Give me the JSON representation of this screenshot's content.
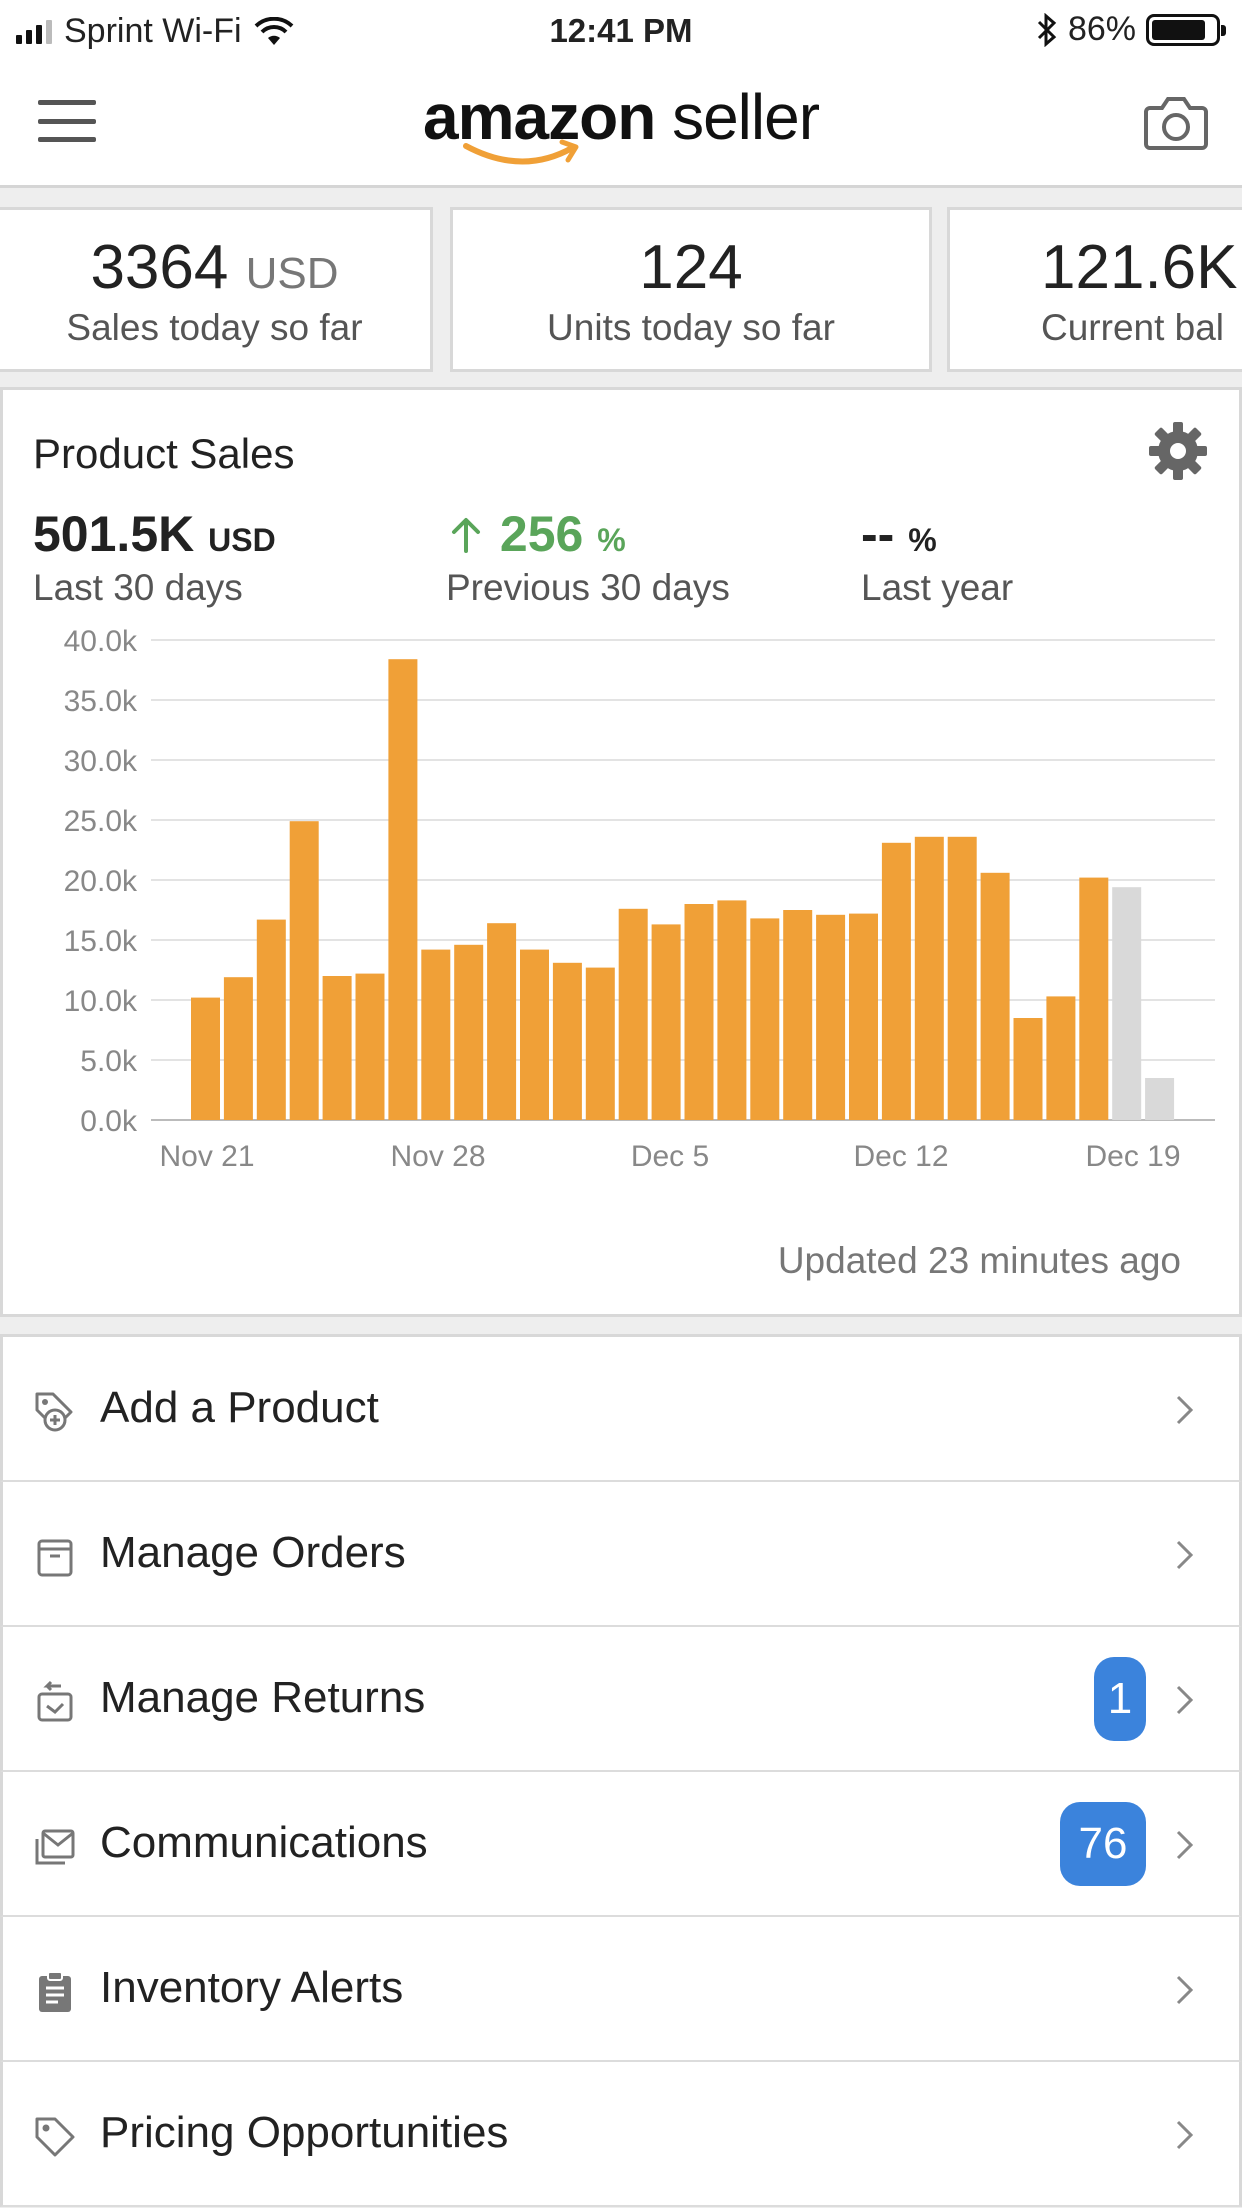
{
  "status_bar": {
    "carrier": "Sprint Wi-Fi",
    "time": "12:41 PM",
    "battery": "86%",
    "battery_level": 0.86
  },
  "header": {
    "logo_brand": "amazon",
    "logo_suffix": "seller",
    "menu_icon": "hamburger-icon",
    "camera_icon": "camera-icon"
  },
  "kpis": [
    {
      "value": "3364",
      "unit": "USD",
      "label": "Sales today so far"
    },
    {
      "value": "124",
      "unit": "",
      "label": "Units today so far"
    },
    {
      "value": "121.6K",
      "unit": "",
      "label": "Current bal"
    }
  ],
  "product_sales": {
    "title": "Product Sales",
    "metrics": [
      {
        "value": "501.5K",
        "unit": "USD",
        "label": "Last 30 days"
      },
      {
        "value": "256",
        "unit": "%",
        "label": "Previous 30 days",
        "trend": "up"
      },
      {
        "value": "--",
        "unit": "%",
        "label": "Last year"
      }
    ],
    "updated": "Updated 23 minutes ago"
  },
  "chart_data": {
    "type": "bar",
    "title": "",
    "xlabel": "",
    "ylabel": "",
    "ylim": [
      0,
      40000
    ],
    "yticks": [
      "0.0k",
      "5.0k",
      "10.0k",
      "15.0k",
      "20.0k",
      "25.0k",
      "30.0k",
      "35.0k",
      "40.0k"
    ],
    "xticks": [
      "Nov 21",
      "Nov 28",
      "Dec 5",
      "Dec 12",
      "Dec 19"
    ],
    "grid": true,
    "colors": {
      "actual": "#f0a037",
      "projected": "#d9d9d9"
    },
    "values": [
      10200,
      11900,
      16700,
      24900,
      12000,
      12200,
      38400,
      14200,
      14600,
      16400,
      14200,
      13100,
      12700,
      17600,
      16300,
      18000,
      18300,
      16800,
      17500,
      17100,
      17200,
      23100,
      23600,
      23600,
      20600,
      8500,
      10300,
      20200,
      19400,
      3500
    ],
    "projected": [
      false,
      false,
      false,
      false,
      false,
      false,
      false,
      false,
      false,
      false,
      false,
      false,
      false,
      false,
      false,
      false,
      false,
      false,
      false,
      false,
      false,
      false,
      false,
      false,
      false,
      false,
      false,
      false,
      true,
      true
    ]
  },
  "menu": [
    {
      "label": "Add a Product",
      "icon": "tag-plus-icon",
      "badge": ""
    },
    {
      "label": "Manage Orders",
      "icon": "box-icon",
      "badge": ""
    },
    {
      "label": "Manage Returns",
      "icon": "return-box-icon",
      "badge": "1"
    },
    {
      "label": "Communications",
      "icon": "envelope-icon",
      "badge": "76"
    },
    {
      "label": "Inventory Alerts",
      "icon": "clipboard-icon",
      "badge": ""
    },
    {
      "label": "Pricing Opportunities",
      "icon": "price-tag-icon",
      "badge": ""
    }
  ]
}
